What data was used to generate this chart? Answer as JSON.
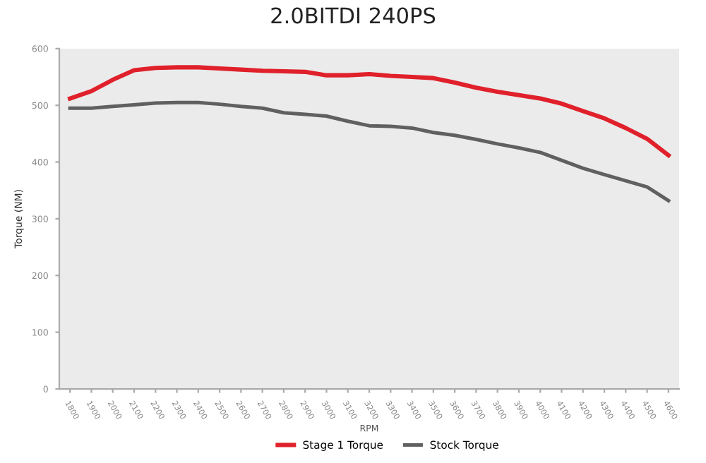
{
  "chart_data": {
    "type": "line",
    "title": "2.0BITDI 240PS",
    "xlabel": "RPM",
    "ylabel": "Torque (NM)",
    "categories": [
      "1800",
      "1900",
      "2000",
      "2100",
      "2200",
      "2300",
      "2400",
      "2500",
      "2600",
      "2700",
      "2800",
      "2900",
      "3000",
      "3100",
      "3200",
      "3300",
      "3400",
      "3500",
      "3600",
      "3700",
      "3800",
      "3900",
      "4000",
      "4100",
      "4200",
      "4300",
      "4400",
      "4500",
      "4600"
    ],
    "series": [
      {
        "name": "Stage 1 Torque",
        "color": "#e0202a",
        "values": [
          512,
          525,
          545,
          562,
          566,
          567,
          567,
          565,
          563,
          561,
          560,
          559,
          553,
          553,
          555,
          552,
          550,
          548,
          540,
          531,
          524,
          518,
          512,
          503,
          490,
          477,
          460,
          441,
          412
        ]
      },
      {
        "name": "Stock Torque",
        "color": "#606060",
        "values": [
          495,
          495,
          498,
          501,
          504,
          505,
          505,
          502,
          498,
          495,
          487,
          484,
          481,
          472,
          464,
          463,
          460,
          452,
          447,
          440,
          432,
          425,
          417,
          403,
          389,
          378,
          367,
          356,
          332
        ]
      }
    ],
    "ylim": [
      0,
      600
    ],
    "yticks": [
      0,
      100,
      200,
      300,
      400,
      500,
      600
    ],
    "legend": "bottom",
    "marker": "none",
    "line_style": "solid"
  }
}
